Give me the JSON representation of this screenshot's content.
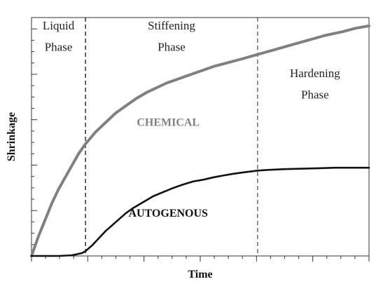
{
  "chart_data": {
    "type": "line",
    "title": "",
    "xlabel": "Time",
    "ylabel": "Shrinkage",
    "xlim": [
      0,
      100
    ],
    "ylim": [
      0,
      100
    ],
    "grid": false,
    "legend": "none",
    "phase_boundaries": [
      16,
      67
    ],
    "phases": [
      {
        "name": "liquid",
        "lines": [
          "Liquid",
          "Phase"
        ],
        "x": 8,
        "y": [
          95,
          86
        ]
      },
      {
        "name": "stiffening",
        "lines": [
          "Stiffening",
          "Phase"
        ],
        "x": 41.5,
        "y": [
          95,
          86
        ]
      },
      {
        "name": "hardening",
        "lines": [
          "Hardening",
          "Phase"
        ],
        "x": 84,
        "y": [
          75,
          66
        ]
      }
    ],
    "series": [
      {
        "name": "CHEMICAL",
        "color": "#808080",
        "label_x": 40.5,
        "label_y": 54.5,
        "x": [
          0,
          2,
          4,
          6,
          8,
          10,
          12,
          14,
          16,
          19,
          22,
          25,
          28,
          31,
          34,
          37,
          40,
          43,
          46,
          50,
          54,
          58,
          62,
          67,
          72,
          77,
          82,
          87,
          92,
          96,
          100
        ],
        "y": [
          0,
          8,
          15,
          22,
          28,
          33,
          38,
          43,
          47,
          52,
          56,
          60,
          63,
          66,
          68.5,
          70.5,
          72.5,
          74,
          75.5,
          77.5,
          79.5,
          81,
          82.5,
          84.5,
          86.5,
          88.5,
          90.5,
          92.5,
          94,
          95.5,
          96.5
        ]
      },
      {
        "name": "AUTOGENOUS",
        "color": "#111111",
        "label_x": 40.5,
        "label_y": 16.5,
        "x": [
          0,
          4,
          8,
          12,
          15,
          16,
          18,
          20,
          22,
          24,
          26,
          28,
          30,
          33,
          36,
          39,
          42,
          45,
          48,
          51,
          54,
          57,
          60,
          63,
          67,
          70,
          75,
          80,
          85,
          90,
          95,
          100
        ],
        "y": [
          0,
          0,
          0,
          0.3,
          1.2,
          2,
          4.5,
          7.5,
          10.5,
          13,
          15.5,
          18,
          20,
          22.5,
          25,
          26.8,
          28.5,
          30,
          31.3,
          32,
          33,
          33.8,
          34.5,
          35.1,
          35.8,
          36.1,
          36.4,
          36.6,
          36.8,
          37,
          37,
          37
        ]
      }
    ]
  }
}
